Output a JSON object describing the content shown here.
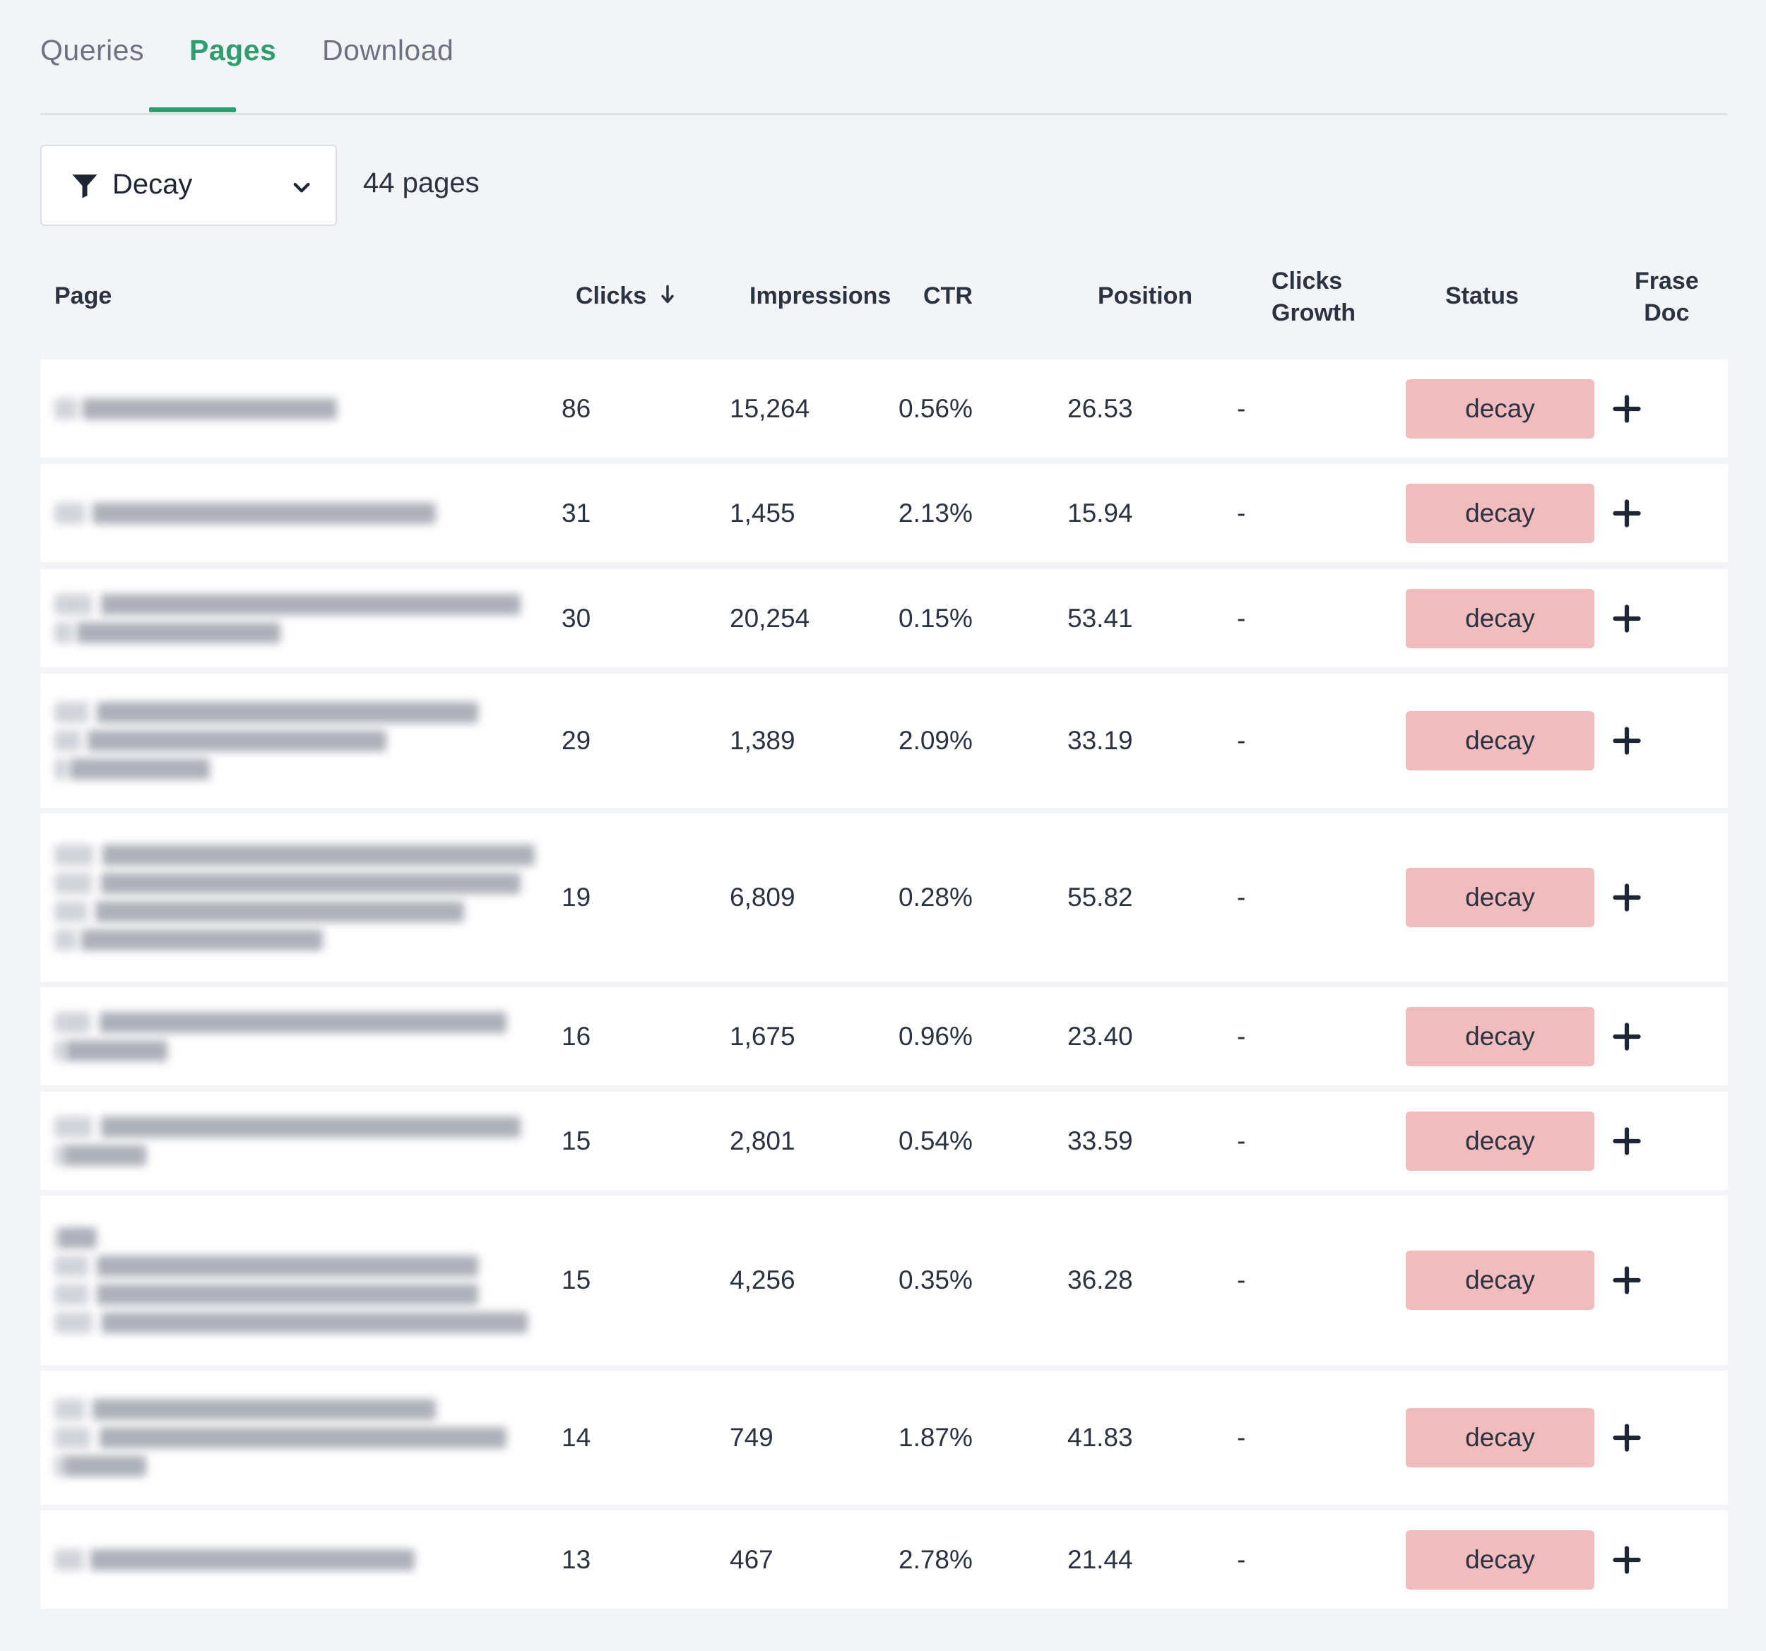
{
  "tabs": [
    {
      "label": "Queries",
      "active": false
    },
    {
      "label": "Pages",
      "active": true
    },
    {
      "label": "Download",
      "active": false
    }
  ],
  "filter": {
    "label": "Decay",
    "icon": "filter-icon",
    "chevron": "chevron-down-icon"
  },
  "page_count": "44 pages",
  "table": {
    "headers": {
      "page": "Page",
      "clicks": "Clicks",
      "impressions": "Impressions",
      "ctr": "CTR",
      "position": "Position",
      "clicks_growth_1": "Clicks",
      "clicks_growth_2": "Growth",
      "status": "Status",
      "frase_doc_1": "Frase",
      "frase_doc_2": "Doc"
    },
    "sort_icon": "arrow-down-icon",
    "rows": [
      {
        "clicks": "86",
        "impressions": "15,264",
        "ctr": "0.56%",
        "position": "26.53",
        "growth": "-",
        "status": "decay"
      },
      {
        "clicks": "31",
        "impressions": "1,455",
        "ctr": "2.13%",
        "position": "15.94",
        "growth": "-",
        "status": "decay"
      },
      {
        "clicks": "30",
        "impressions": "20,254",
        "ctr": "0.15%",
        "position": "53.41",
        "growth": "-",
        "status": "decay"
      },
      {
        "clicks": "29",
        "impressions": "1,389",
        "ctr": "2.09%",
        "position": "33.19",
        "growth": "-",
        "status": "decay"
      },
      {
        "clicks": "19",
        "impressions": "6,809",
        "ctr": "0.28%",
        "position": "55.82",
        "growth": "-",
        "status": "decay"
      },
      {
        "clicks": "16",
        "impressions": "1,675",
        "ctr": "0.96%",
        "position": "23.40",
        "growth": "-",
        "status": "decay"
      },
      {
        "clicks": "15",
        "impressions": "2,801",
        "ctr": "0.54%",
        "position": "33.59",
        "growth": "-",
        "status": "decay"
      },
      {
        "clicks": "15",
        "impressions": "4,256",
        "ctr": "0.35%",
        "position": "36.28",
        "growth": "-",
        "status": "decay"
      },
      {
        "clicks": "14",
        "impressions": "749",
        "ctr": "1.87%",
        "position": "41.83",
        "growth": "-",
        "status": "decay"
      },
      {
        "clicks": "13",
        "impressions": "467",
        "ctr": "2.78%",
        "position": "21.44",
        "growth": "-",
        "status": "decay"
      }
    ]
  },
  "colors": {
    "accent": "#2f9e6f",
    "badge": "#f0bcbd",
    "background": "#f3f4f7"
  }
}
